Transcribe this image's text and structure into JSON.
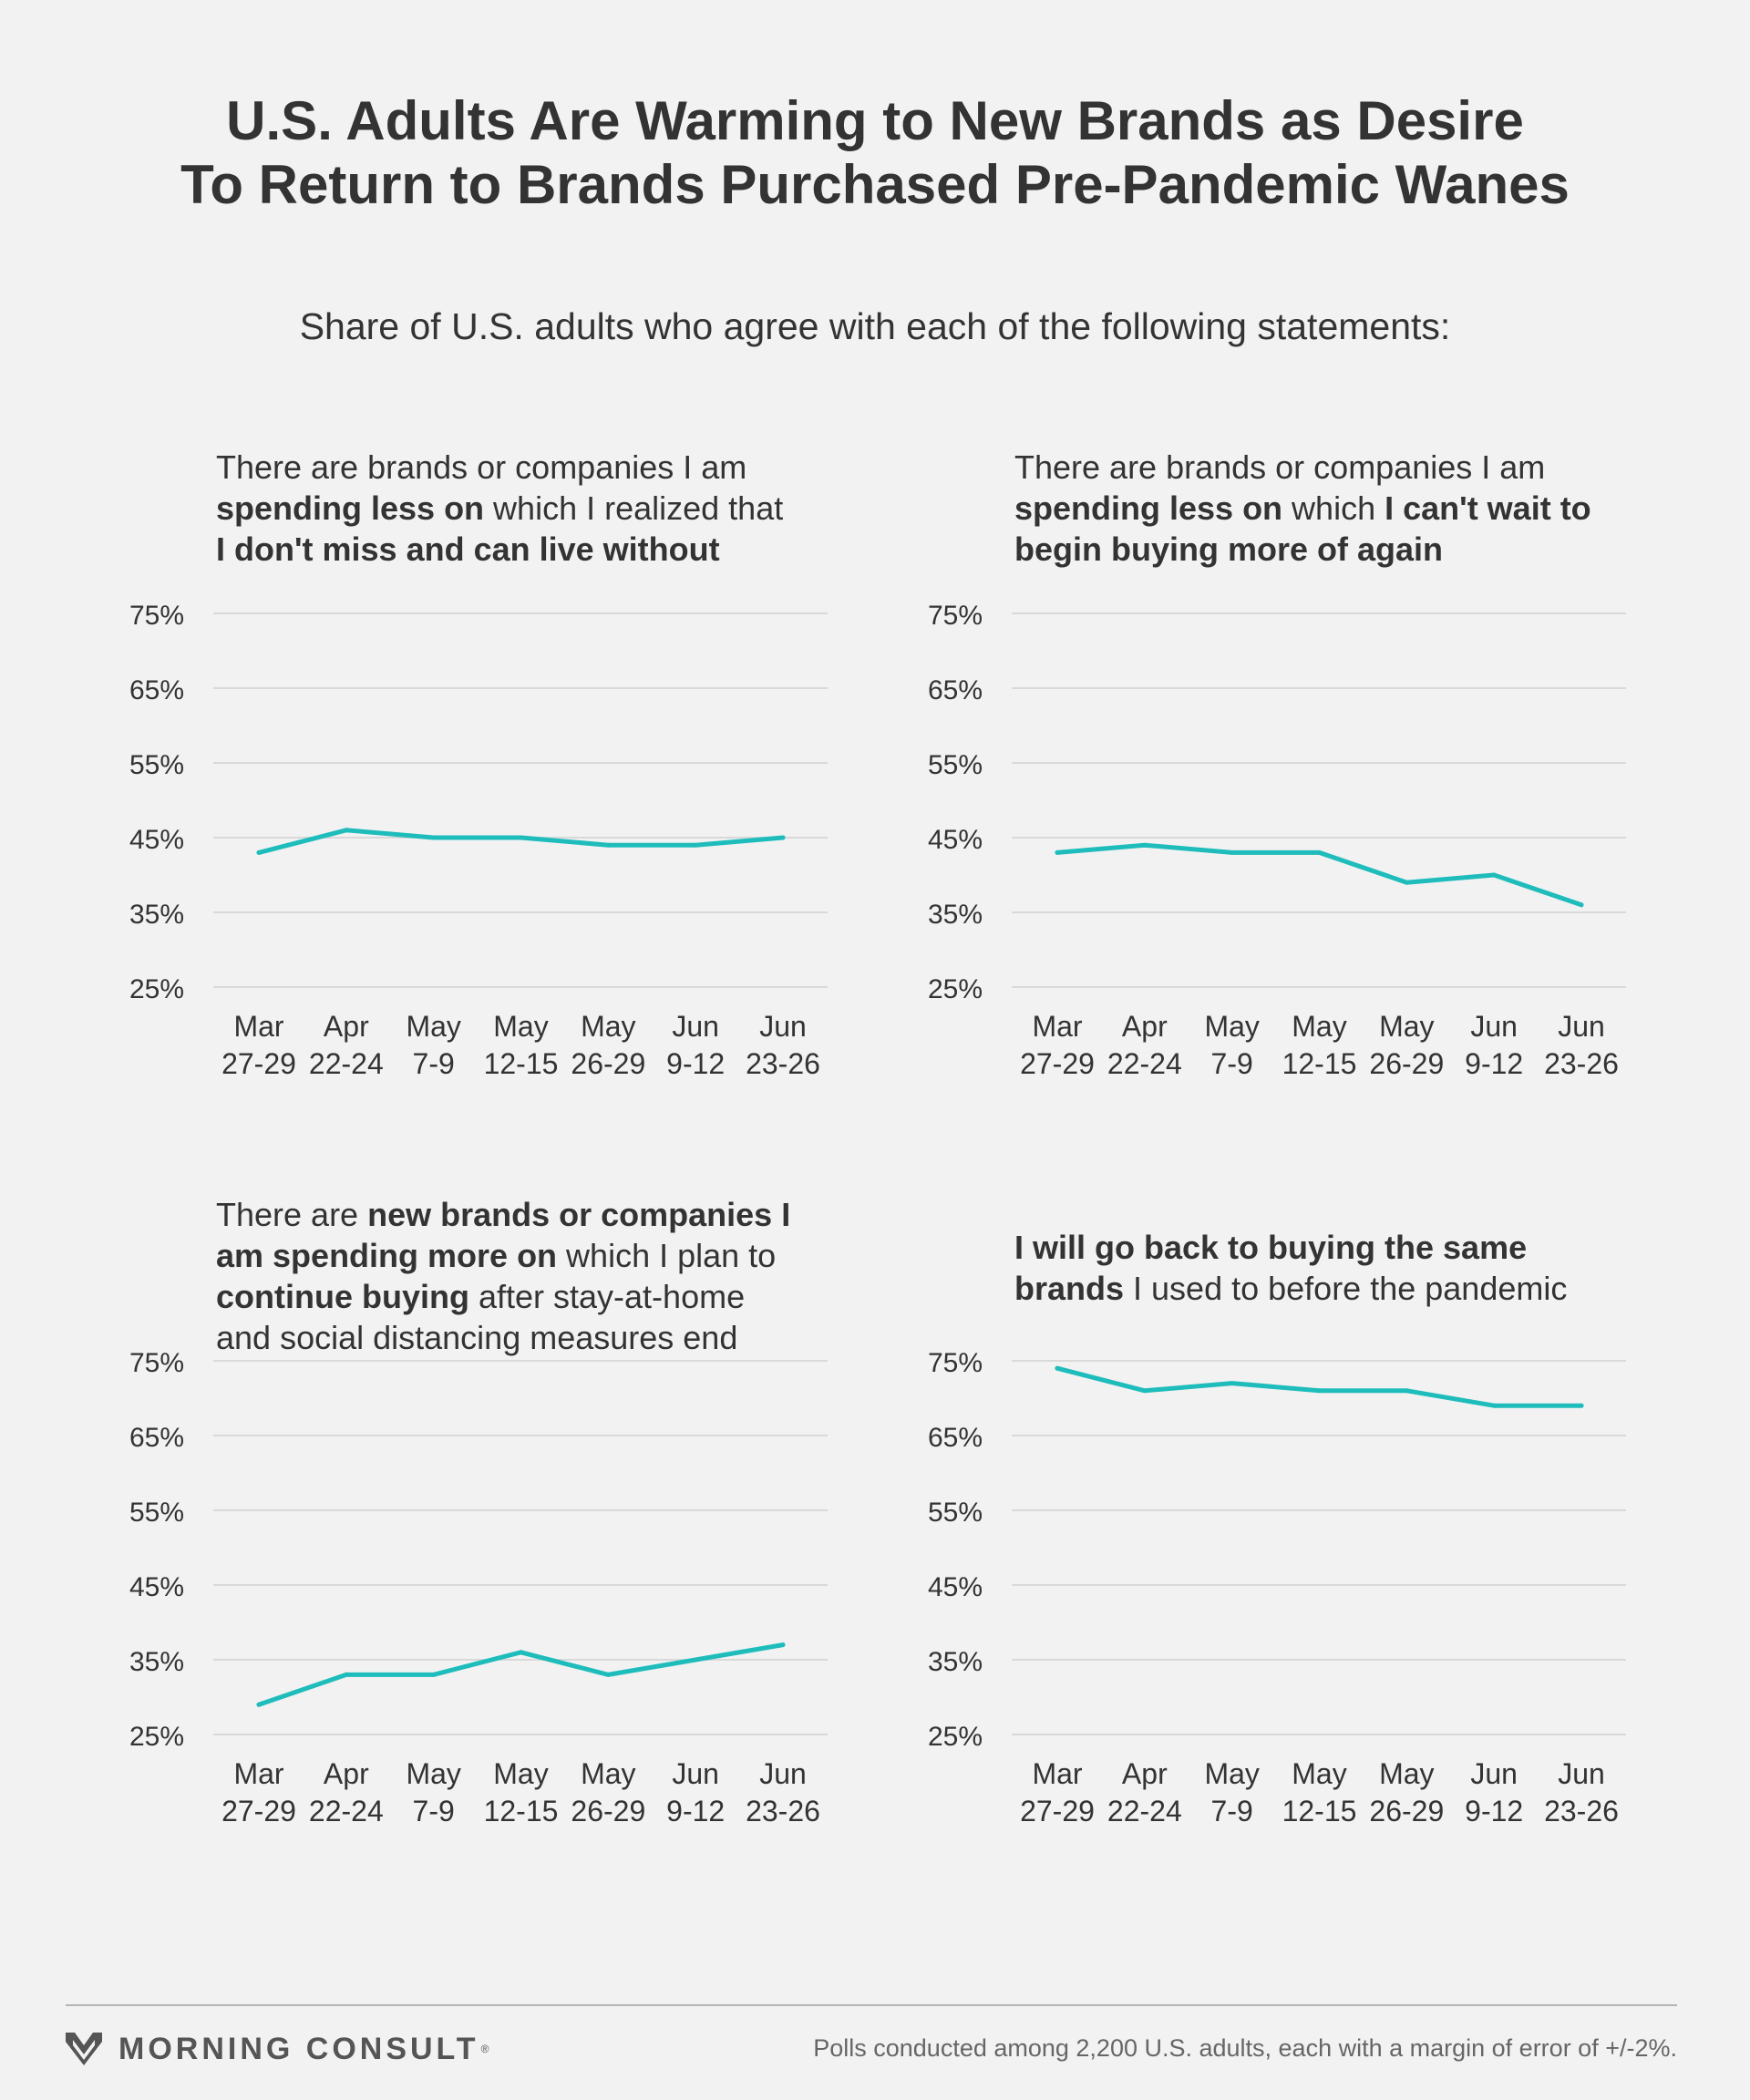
{
  "title_lines": [
    "U.S. Adults Are Warming to New Brands as Desire",
    "To Return to Brands Purchased Pre-Pandemic Wanes"
  ],
  "subtitle": "Share of U.S. adults who agree with each of the following statements:",
  "line_color": "#1fbcbc",
  "grid_color": "#d9d9d9",
  "footer": {
    "brand": "MORNING CONSULT",
    "note": "Polls conducted among 2,200 U.S. adults, each with a margin of error of +/-2%."
  },
  "chart_data": [
    {
      "type": "line",
      "title_segments": [
        [
          {
            "t": "There are brands or companies I am",
            "b": false
          }
        ],
        [
          {
            "t": "spending less on",
            "b": true
          },
          {
            "t": " which I realized that",
            "b": false
          }
        ],
        [
          {
            "t": "I don't miss and can live without",
            "b": true
          }
        ]
      ],
      "x_top": [
        "Mar",
        "Apr",
        "May",
        "May",
        "May",
        "Jun",
        "Jun"
      ],
      "x_bottom": [
        "27-29",
        "22-24",
        "7-9",
        "12-15",
        "26-29",
        "9-12",
        "23-26"
      ],
      "y_ticks": [
        "75%",
        "65%",
        "55%",
        "45%",
        "35%",
        "25%"
      ],
      "ylim": [
        25,
        75
      ],
      "values": [
        43,
        46,
        45,
        45,
        44,
        44,
        45
      ]
    },
    {
      "type": "line",
      "title_segments": [
        [
          {
            "t": "There are brands or companies I am",
            "b": false
          }
        ],
        [
          {
            "t": "spending less on",
            "b": true
          },
          {
            "t": " which ",
            "b": false
          },
          {
            "t": "I can't wait to",
            "b": true
          }
        ],
        [
          {
            "t": "begin buying more of again",
            "b": true
          }
        ]
      ],
      "x_top": [
        "Mar",
        "Apr",
        "May",
        "May",
        "May",
        "Jun",
        "Jun"
      ],
      "x_bottom": [
        "27-29",
        "22-24",
        "7-9",
        "12-15",
        "26-29",
        "9-12",
        "23-26"
      ],
      "y_ticks": [
        "75%",
        "65%",
        "55%",
        "45%",
        "35%",
        "25%"
      ],
      "ylim": [
        25,
        75
      ],
      "values": [
        43,
        44,
        43,
        43,
        39,
        40,
        36
      ]
    },
    {
      "type": "line",
      "title_segments": [
        [
          {
            "t": "There are ",
            "b": false
          },
          {
            "t": "new brands or companies I",
            "b": true
          }
        ],
        [
          {
            "t": "am spending more on",
            "b": true
          },
          {
            "t": " which I plan to",
            "b": false
          }
        ],
        [
          {
            "t": "continue buying",
            "b": true
          },
          {
            "t": " after stay-at-home",
            "b": false
          }
        ],
        [
          {
            "t": "and social distancing measures end",
            "b": false
          }
        ]
      ],
      "x_top": [
        "Mar",
        "Apr",
        "May",
        "May",
        "May",
        "Jun",
        "Jun"
      ],
      "x_bottom": [
        "27-29",
        "22-24",
        "7-9",
        "12-15",
        "26-29",
        "9-12",
        "23-26"
      ],
      "y_ticks": [
        "75%",
        "65%",
        "55%",
        "45%",
        "35%",
        "25%"
      ],
      "ylim": [
        25,
        75
      ],
      "values": [
        29,
        33,
        33,
        36,
        33,
        35,
        37
      ]
    },
    {
      "type": "line",
      "title_segments": [
        [
          {
            "t": "I will go back to buying the same",
            "b": true
          }
        ],
        [
          {
            "t": "brands",
            "b": true
          },
          {
            "t": " I used to before the pandemic",
            "b": false
          }
        ]
      ],
      "x_top": [
        "Mar",
        "Apr",
        "May",
        "May",
        "May",
        "Jun",
        "Jun"
      ],
      "x_bottom": [
        "27-29",
        "22-24",
        "7-9",
        "12-15",
        "26-29",
        "9-12",
        "23-26"
      ],
      "y_ticks": [
        "75%",
        "65%",
        "55%",
        "45%",
        "35%",
        "25%"
      ],
      "ylim": [
        25,
        75
      ],
      "values": [
        74,
        71,
        72,
        71,
        71,
        69,
        69
      ]
    }
  ]
}
